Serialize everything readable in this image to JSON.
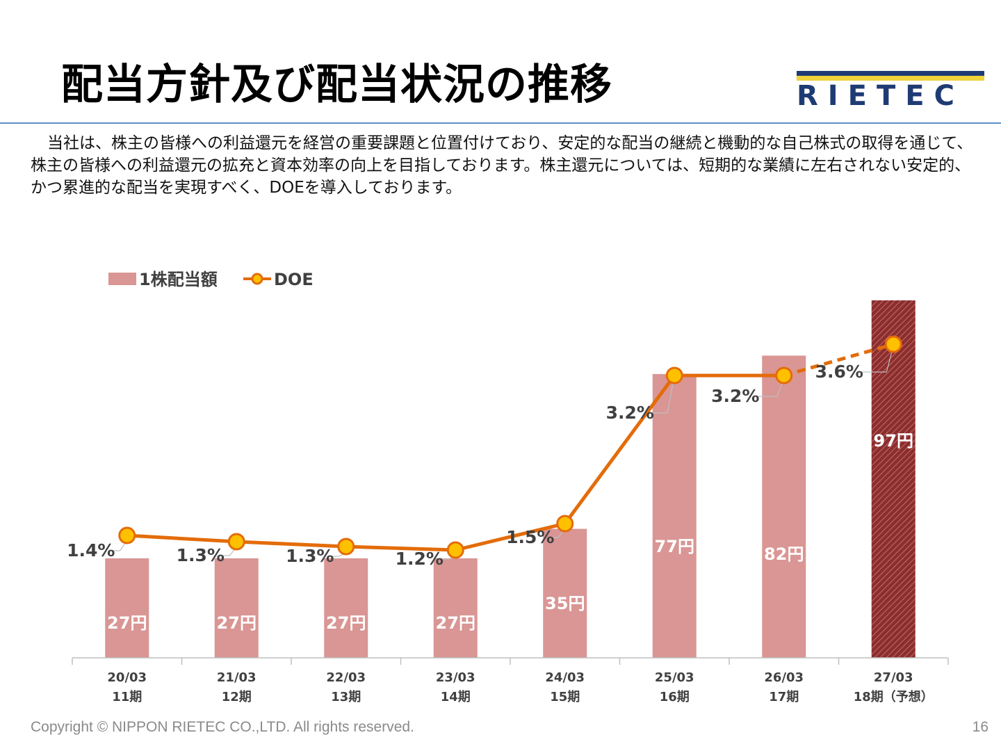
{
  "title": "配当方針及び配当状況の推移",
  "logo_text": "RIETEC",
  "intro": "当社は、株主の皆様への利益還元を経営の重要課題と位置付けており、安定的な配当の継続と機動的な自己株式の取得を通じて、株主の皆様への利益還元の拡充と資本効率の向上を目指しております。株主還元については、短期的な業績に左右されない安定的、かつ累進的な配当を実現すべく、DOEを導入しております。",
  "footer": "Copyright © NIPPON RIETEC CO.,LTD. All rights reserved.",
  "page_number": "16",
  "colors": {
    "bar": "#d99694",
    "bar_forecast": "#8b2e2e",
    "line": "#e36c0a",
    "marker_fill": "#ffc000",
    "bar_label": "#ffffff",
    "line_label": "#404040"
  },
  "chart_data": {
    "type": "bar+line",
    "categories": [
      [
        "20/03",
        "11期"
      ],
      [
        "21/03",
        "12期"
      ],
      [
        "22/03",
        "13期"
      ],
      [
        "23/03",
        "14期"
      ],
      [
        "24/03",
        "15期"
      ],
      [
        "25/03",
        "16期"
      ],
      [
        "26/03",
        "17期"
      ],
      [
        "27/03",
        "18期（予想）"
      ]
    ],
    "series": [
      {
        "name": "1株配当額",
        "kind": "bar",
        "values": [
          27,
          27,
          27,
          27,
          35,
          77,
          82,
          97
        ],
        "labels": [
          "27円",
          "27円",
          "27円",
          "27円",
          "35円",
          "77円",
          "82円",
          "97円"
        ],
        "forecast_index": 7
      },
      {
        "name": "DOE",
        "kind": "line",
        "values": [
          1.4,
          1.3,
          1.3,
          1.2,
          1.5,
          3.2,
          3.2,
          3.6
        ],
        "labels": [
          "1.4%",
          "1.3%",
          "1.3%",
          "1.2%",
          "1.5%",
          "3.2%",
          "3.2%",
          "3.6%"
        ],
        "forecast_index": 7
      }
    ],
    "legend_position": "top-left",
    "grid": false
  }
}
